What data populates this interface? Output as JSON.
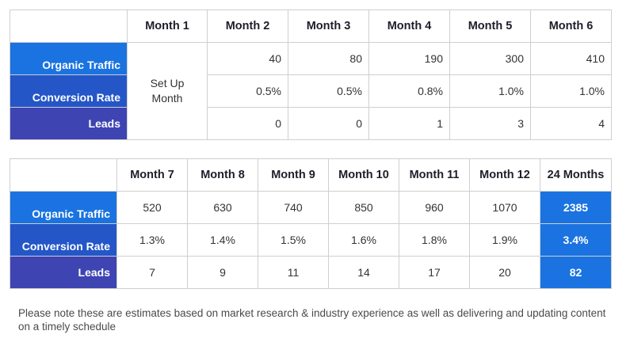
{
  "table1": {
    "headers": [
      "Month 1",
      "Month 2",
      "Month 3",
      "Month 4",
      "Month 5",
      "Month 6"
    ],
    "row_labels": [
      "Organic Traffic",
      "Conversion Rate",
      "Leads"
    ],
    "setup_text": "Set Up Month",
    "organic_traffic": [
      "40",
      "80",
      "190",
      "300",
      "410"
    ],
    "conversion_rate": [
      "0.5%",
      "0.5%",
      "0.8%",
      "1.0%",
      "1.0%"
    ],
    "leads": [
      "0",
      "0",
      "1",
      "3",
      "4"
    ]
  },
  "table2": {
    "headers": [
      "Month 7",
      "Month 8",
      "Month 9",
      "Month 10",
      "Month 11",
      "Month 12",
      "24 Months"
    ],
    "row_labels": [
      "Organic Traffic",
      "Conversion Rate",
      "Leads"
    ],
    "organic_traffic": [
      "520",
      "630",
      "740",
      "850",
      "960",
      "1070",
      "2385"
    ],
    "conversion_rate": [
      "1.3%",
      "1.4%",
      "1.5%",
      "1.6%",
      "1.8%",
      "1.9%",
      "3.4%"
    ],
    "leads": [
      "7",
      "9",
      "11",
      "14",
      "17",
      "20",
      "82"
    ]
  },
  "note": "Please note these are estimates based on market research & industry experience as well as delivering and updating content on a timely schedule",
  "colors": {
    "organic": "#1a73e0",
    "conversion": "#2456c8",
    "leads": "#3e44b2",
    "total": "#1a73e0"
  }
}
